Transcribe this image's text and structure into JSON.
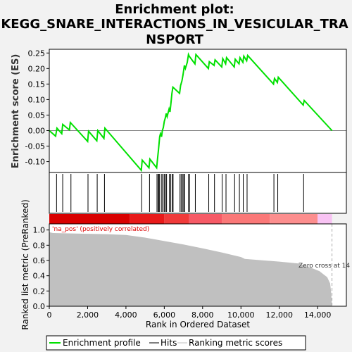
{
  "chart_data": {
    "type": "line",
    "title_lines": [
      "Enrichment plot:",
      "KEGG_SNARE_INTERACTIONS_IN_VESICULAR_TRA",
      "NSPORT"
    ],
    "es_panel": {
      "ylabel": "Enrichment score (ES)",
      "ylim": [
        -0.135,
        0.262
      ],
      "yticks": [
        "-0.10",
        "-0.05",
        "0.00",
        "0.05",
        "0.10",
        "0.15",
        "0.20",
        "0.25"
      ],
      "ytick_values": [
        -0.1,
        -0.05,
        0.0,
        0.05,
        0.1,
        0.15,
        0.2,
        0.25
      ],
      "series": [
        {
          "name": "Enrichment profile",
          "color": "#00e000",
          "x": [
            0,
            330,
            400,
            650,
            700,
            1050,
            1100,
            2000,
            2050,
            2480,
            2530,
            2850,
            2900,
            4800,
            4850,
            5200,
            5250,
            5600,
            5650,
            5700,
            5730,
            5760,
            5800,
            5860,
            5900,
            5950,
            6000,
            6050,
            6100,
            6150,
            6250,
            6300,
            6350,
            6400,
            6450,
            6800,
            6850,
            6920,
            6980,
            7050,
            7100,
            7200,
            7260,
            7300,
            7600,
            7650,
            8300,
            8350,
            8600,
            8650,
            9000,
            9050,
            9200,
            9250,
            9650,
            9700,
            9900,
            9950,
            10100,
            10150,
            10300,
            10350,
            11700,
            11750,
            11900,
            11950,
            13250,
            13300,
            14750
          ],
          "y": [
            0.0,
            -0.018,
            0.008,
            -0.01,
            0.02,
            0.002,
            0.026,
            -0.035,
            -0.002,
            -0.033,
            0.0,
            -0.025,
            0.008,
            -0.128,
            -0.095,
            -0.12,
            -0.092,
            -0.12,
            -0.09,
            -0.06,
            -0.04,
            -0.02,
            -0.01,
            -0.02,
            0.0,
            0.01,
            0.03,
            0.04,
            0.055,
            0.045,
            0.07,
            0.06,
            0.09,
            0.12,
            0.14,
            0.12,
            0.145,
            0.16,
            0.18,
            0.21,
            0.2,
            0.22,
            0.245,
            0.24,
            0.215,
            0.245,
            0.2,
            0.222,
            0.21,
            0.228,
            0.205,
            0.232,
            0.215,
            0.235,
            0.205,
            0.23,
            0.215,
            0.235,
            0.22,
            0.24,
            0.225,
            0.242,
            0.15,
            0.168,
            0.155,
            0.172,
            0.082,
            0.097,
            0.0
          ]
        }
      ]
    },
    "hits": [
      380,
      700,
      1130,
      2020,
      2500,
      2880,
      4820,
      5230,
      5620,
      5680,
      5720,
      5760,
      5870,
      5930,
      6000,
      6060,
      6120,
      6270,
      6330,
      6410,
      6460,
      6820,
      6880,
      6950,
      7010,
      7070,
      7270,
      7310,
      7620,
      8320,
      8620,
      9020,
      9220,
      9670,
      9920,
      10120,
      10320,
      11720,
      11920,
      13270
    ],
    "metric_panel": {
      "ylabel": "Ranked list metric (PreRanked)",
      "xlabel": "Rank in Ordered Dataset",
      "ylim": [
        0,
        1.08
      ],
      "yticks": [
        "0.0",
        "0.2",
        "0.4",
        "0.6",
        "0.8",
        "1.0"
      ],
      "ytick_values": [
        0.0,
        0.2,
        0.4,
        0.6,
        0.8,
        1.0
      ],
      "xlim": [
        0,
        15500
      ],
      "xticks": [
        "0",
        "2,000",
        "4,000",
        "6,000",
        "8,000",
        "10,000",
        "12,000",
        "14,000"
      ],
      "xtick_values": [
        0,
        2000,
        4000,
        6000,
        8000,
        10000,
        12000,
        14000
      ],
      "area_color": "#c0c0c0",
      "x": [
        0,
        200,
        1000,
        2000,
        3000,
        4000,
        5000,
        6000,
        7000,
        8000,
        9000,
        10000,
        10200,
        11000,
        12000,
        13000,
        13800,
        14100,
        14300,
        14500,
        14650,
        14700,
        14750
      ],
      "y": [
        0.97,
        0.96,
        0.955,
        0.95,
        0.945,
        0.935,
        0.9,
        0.855,
        0.81,
        0.76,
        0.705,
        0.645,
        0.62,
        0.605,
        0.585,
        0.56,
        0.49,
        0.46,
        0.42,
        0.38,
        0.3,
        0.2,
        0.0
      ],
      "pos_label": "'na_pos' (positively correlated)",
      "zero_cross_label": "Zero cross at 14"
    },
    "heat_band": {
      "segments": [
        {
          "from": 0,
          "to": 4200,
          "color": "#d90000"
        },
        {
          "from": 4200,
          "to": 6000,
          "color": "#e81a1a"
        },
        {
          "from": 6000,
          "to": 7300,
          "color": "#f03a3a"
        },
        {
          "from": 7300,
          "to": 9000,
          "color": "#f65a66"
        },
        {
          "from": 9000,
          "to": 11500,
          "color": "#fa7878"
        },
        {
          "from": 11500,
          "to": 14000,
          "color": "#fc8e8e"
        },
        {
          "from": 14000,
          "to": 14750,
          "color": "#f8c3f3"
        }
      ]
    },
    "legend": [
      {
        "label": "Enrichment profile",
        "color": "#00e000"
      },
      {
        "label": "Hits",
        "color": "#000000"
      },
      {
        "label": "Ranking metric scores",
        "color": "#c0c0c0"
      }
    ]
  }
}
